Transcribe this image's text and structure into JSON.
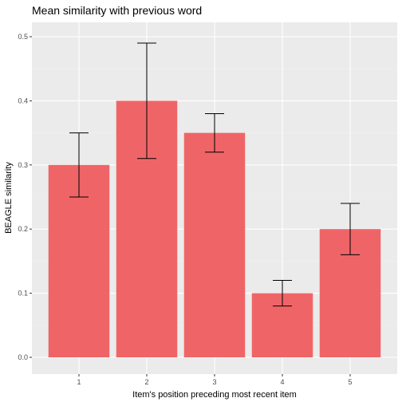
{
  "chart_data": {
    "type": "bar",
    "title": "Mean similarity with previous word",
    "xlabel": "Item's position preceding most recent item",
    "ylabel": "BEAGLE similarity",
    "categories": [
      "1",
      "2",
      "3",
      "4",
      "5"
    ],
    "values": [
      0.3,
      0.4,
      0.35,
      0.1,
      0.2
    ],
    "error_low": [
      0.25,
      0.31,
      0.32,
      0.08,
      0.16
    ],
    "error_high": [
      0.35,
      0.49,
      0.38,
      0.12,
      0.24
    ],
    "ylim": [
      0,
      0.5
    ],
    "yticks": [
      "0.0",
      "0.1",
      "0.2",
      "0.3",
      "0.4",
      "0.5"
    ],
    "grid": true,
    "legend": "none"
  },
  "colors": {
    "bar": "#ef6567",
    "panel": "#ebebeb",
    "grid_major": "#ffffff",
    "grid_minor": "#f2f2f2",
    "errorbar": "#000000"
  }
}
